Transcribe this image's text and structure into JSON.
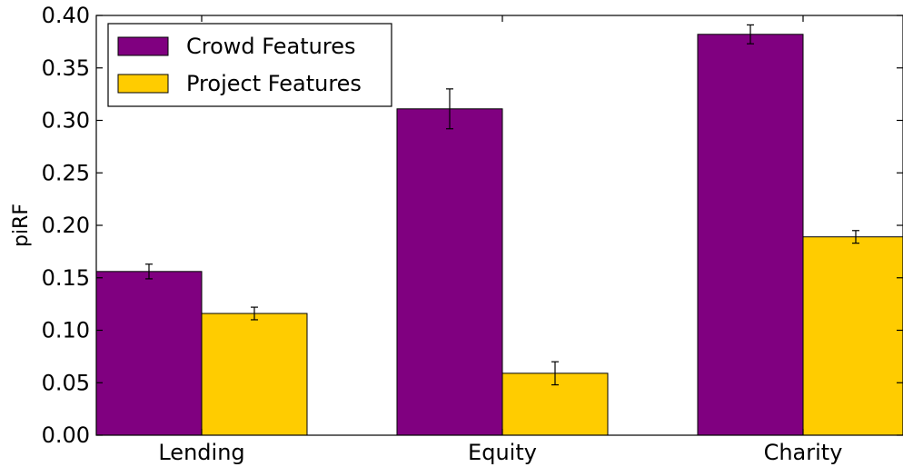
{
  "chart_data": {
    "type": "bar",
    "categories": [
      "Lending",
      "Equity",
      "Charity"
    ],
    "series": [
      {
        "name": "Crowd Features",
        "color": "#800080",
        "values": [
          0.156,
          0.311,
          0.382
        ],
        "errors": [
          0.007,
          0.019,
          0.009
        ]
      },
      {
        "name": "Project Features",
        "color": "#FFCC00",
        "values": [
          0.116,
          0.059,
          0.189
        ],
        "errors": [
          0.006,
          0.011,
          0.006
        ]
      }
    ],
    "ylabel": "piRF",
    "xlabel": "",
    "title": "",
    "ylim": [
      0.0,
      0.4
    ],
    "yticks": [
      "0.00",
      "0.05",
      "0.10",
      "0.15",
      "0.20",
      "0.25",
      "0.30",
      "0.35",
      "0.40"
    ],
    "grid": false,
    "legend_position": "top-left"
  }
}
